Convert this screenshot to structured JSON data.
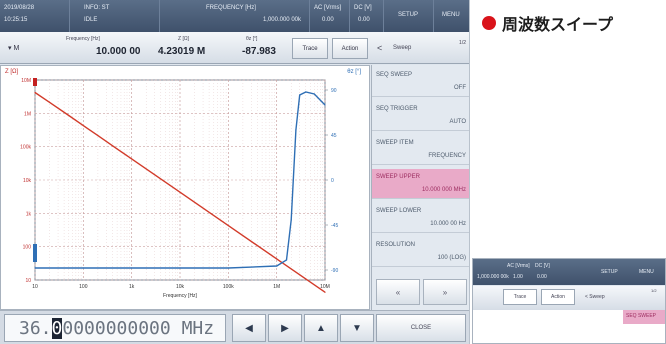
{
  "caption": {
    "text": "周波数スイープ"
  },
  "status_bar": {
    "datetime": [
      "2019/08/28",
      "10:25:15"
    ],
    "info": [
      "INFO: ST",
      "IDLE"
    ],
    "frequency": {
      "label": "FREQUENCY [Hz]",
      "value": "1,000.000 00k"
    },
    "ac": {
      "label": "AC [Vrms]",
      "value": "0.00"
    },
    "dc": {
      "label": "DC [V]",
      "value": "0.00"
    },
    "setup": "SETUP",
    "menu": "MENU"
  },
  "param_bar": {
    "mode": "▾ M",
    "frequency": {
      "label": "Frequency [Hz]",
      "value": "10.000 00"
    },
    "z": {
      "label": "Z [Ω]",
      "value": "4.23019 M"
    },
    "theta": {
      "label": "θz [°]",
      "value": "-87.983"
    },
    "trace_btn": "Trace",
    "action_btn": "Action"
  },
  "chart_panel": {
    "label_left": "Z [Ω]",
    "label_right": "θz [°]"
  },
  "menu": {
    "back": "<",
    "title": "Sweep",
    "page": "1/2",
    "items": [
      {
        "title": "SEQ SWEEP",
        "value": "OFF"
      },
      {
        "title": "SEQ TRIGGER",
        "value": "AUTO"
      },
      {
        "title": "SWEEP ITEM",
        "value": "FREQUENCY"
      },
      {
        "title": "SWEEP UPPER",
        "value": "10.000 000 MHz"
      },
      {
        "title": "SWEEP LOWER",
        "value": "10.000 00 Hz"
      },
      {
        "title": "RESOLUTION",
        "value": "100 (LOG)"
      }
    ],
    "prev": "«",
    "next": "»"
  },
  "entry": {
    "prefix": "36.",
    "cursor": "0",
    "suffix": "0000000000 MHz",
    "left": "◀",
    "right": "▶",
    "up": "▲",
    "down": "▼",
    "close": "CLOSE"
  },
  "chart_data": {
    "type": "line",
    "xlabel": "Frequency [Hz]",
    "x_scale": "log",
    "xlim": [
      10,
      10000000
    ],
    "x_ticks": [
      "10",
      "100",
      "1k",
      "10k",
      "100k",
      "1M",
      "10M"
    ],
    "y_left_ticks": [
      "10M",
      "1M",
      "100k",
      "10k",
      "1k",
      "100",
      "10"
    ],
    "y_right_ticks": [
      "90",
      "45",
      "0",
      "-45",
      "-90"
    ],
    "ylim_right": [
      -100,
      100
    ],
    "series": [
      {
        "name": "Z",
        "color": "#d23b2a",
        "x": [
          10,
          20,
          50,
          100,
          200,
          500,
          1000,
          10000,
          100000,
          1000000,
          10000000
        ],
        "y": [
          4230190,
          2150000,
          860000,
          430000,
          215000,
          86000,
          43000,
          4300,
          430,
          43,
          4.3
        ]
      },
      {
        "name": "θz",
        "color": "#2f6fb5",
        "x": [
          10,
          100,
          1000,
          10000,
          100000,
          1000000,
          1600000,
          2000000,
          2500000,
          3000000,
          4000000,
          6000000,
          10000000
        ],
        "y": [
          -87.983,
          -88,
          -88,
          -88,
          -88,
          -86,
          -80,
          -40,
          50,
          85,
          88,
          86,
          75
        ]
      }
    ]
  },
  "inset": {
    "status": [
      "AC [Vrms]",
      "DC [V]",
      "SETUP",
      "MENU"
    ],
    "status_values": [
      "1,000.000 00k",
      "1.00",
      "0.00"
    ],
    "trace": "Trace",
    "action": "Action",
    "sweep": "< Sweep",
    "page": "1/2",
    "selected": "SEQ SWEEP"
  }
}
